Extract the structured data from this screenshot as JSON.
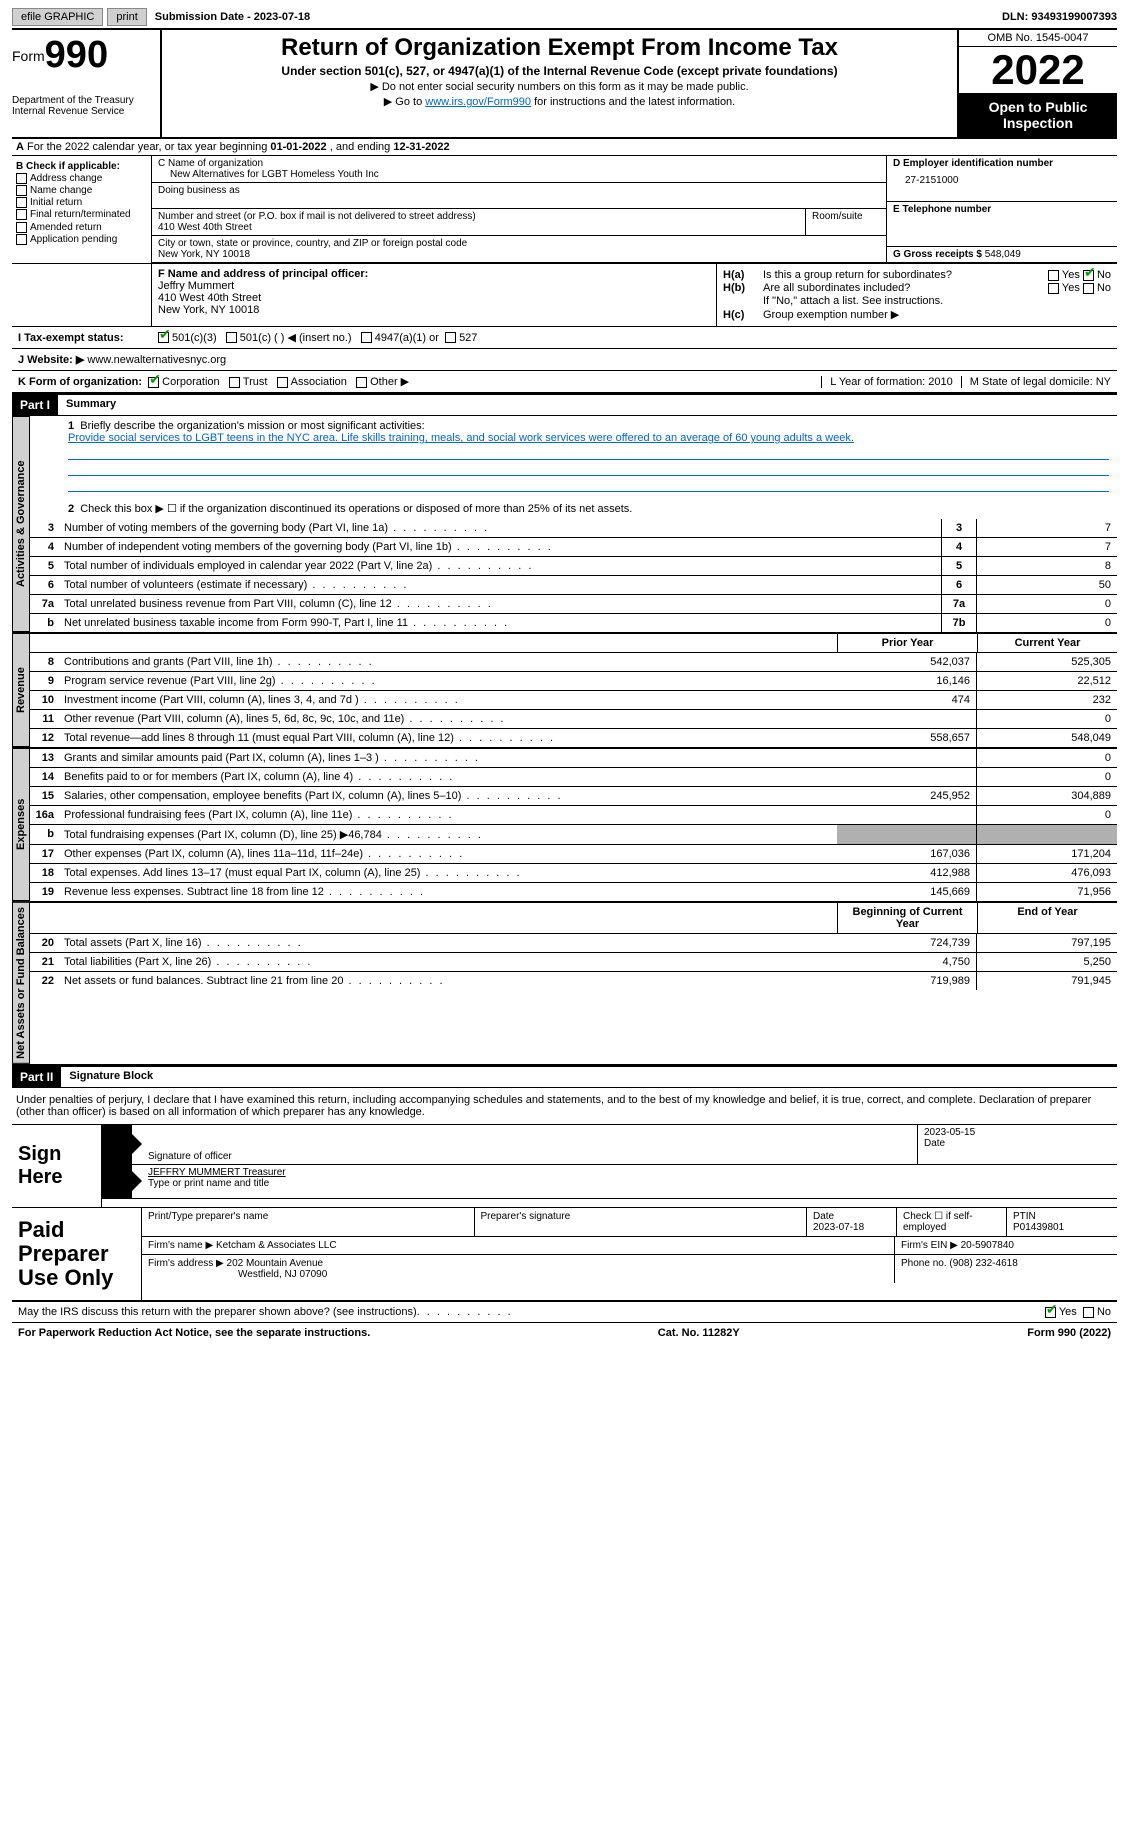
{
  "topbar": {
    "efile": "efile GRAPHIC",
    "print": "print",
    "subdate_label": "Submission Date - ",
    "subdate": "2023-07-18",
    "dln_label": "DLN: ",
    "dln": "93493199007393"
  },
  "header": {
    "form_label": "Form",
    "form_num": "990",
    "dept": "Department of the Treasury\nInternal Revenue Service",
    "title": "Return of Organization Exempt From Income Tax",
    "subtitle": "Under section 501(c), 527, or 4947(a)(1) of the Internal Revenue Code (except private foundations)",
    "note1": "▶ Do not enter social security numbers on this form as it may be made public.",
    "note2_pre": "▶ Go to ",
    "note2_link": "www.irs.gov/Form990",
    "note2_post": " for instructions and the latest information.",
    "omb": "OMB No. 1545-0047",
    "year": "2022",
    "opi": "Open to Public Inspection"
  },
  "A": {
    "text": "For the 2022 calendar year, or tax year beginning ",
    "begin": "01-01-2022",
    "mid": " , and ending ",
    "end": "12-31-2022"
  },
  "B": {
    "hdr": "B Check if applicable:",
    "items": [
      "Address change",
      "Name change",
      "Initial return",
      "Final return/terminated",
      "Amended return",
      "Application pending"
    ]
  },
  "C": {
    "name_label": "C Name of organization",
    "name": "New Alternatives for LGBT Homeless Youth Inc",
    "dba_label": "Doing business as",
    "street_label": "Number and street (or P.O. box if mail is not delivered to street address)",
    "street": "410 West 40th Street",
    "room_label": "Room/suite",
    "city_label": "City or town, state or province, country, and ZIP or foreign postal code",
    "city": "New York, NY  10018"
  },
  "D": {
    "ein_label": "D Employer identification number",
    "ein": "27-2151000",
    "tel_label": "E Telephone number",
    "gross_label": "G Gross receipts $ ",
    "gross": "548,049"
  },
  "F": {
    "label": "F  Name and address of principal officer:",
    "name": "Jeffry Mummert",
    "addr1": "410 West 40th Street",
    "addr2": "New York, NY  10018"
  },
  "H": {
    "a_label": "H(a)",
    "a_text": "Is this a group return for subordinates?",
    "a_no_checked": true,
    "b_label": "H(b)",
    "b_text": "Are all subordinates included?",
    "b_note": "If \"No,\" attach a list. See instructions.",
    "c_label": "H(c)",
    "c_text": "Group exemption number ▶"
  },
  "I": {
    "label": "I   Tax-exempt status:",
    "opts": [
      "501(c)(3)",
      "501(c) (  ) ◀ (insert no.)",
      "4947(a)(1) or",
      "527"
    ],
    "checked": 0
  },
  "J": {
    "label": "J   Website: ▶ ",
    "value": "www.newalternativesnyc.org"
  },
  "K": {
    "label": "K Form of organization:",
    "opts": [
      "Corporation",
      "Trust",
      "Association",
      "Other ▶"
    ],
    "checked": 0,
    "L": "L Year of formation: 2010",
    "M": "M State of legal domicile: NY"
  },
  "part1": {
    "hdr": "Part I",
    "title": "Summary",
    "tab_ag": "Activities & Governance",
    "tab_rev": "Revenue",
    "tab_exp": "Expenses",
    "tab_na": "Net Assets or Fund Balances",
    "l1_label": "Briefly describe the organization's mission or most significant activities:",
    "l1_text": "Provide social services to LGBT teens in the NYC area. Life skills training, meals, and social work services were offered to an average of 60 young adults a week.",
    "l2": "Check this box ▶ ☐  if the organization discontinued its operations or disposed of more than 25% of its net assets.",
    "lines_ag": [
      {
        "n": "3",
        "t": "Number of voting members of the governing body (Part VI, line 1a)",
        "box": "3",
        "v": "7"
      },
      {
        "n": "4",
        "t": "Number of independent voting members of the governing body (Part VI, line 1b)",
        "box": "4",
        "v": "7"
      },
      {
        "n": "5",
        "t": "Total number of individuals employed in calendar year 2022 (Part V, line 2a)",
        "box": "5",
        "v": "8"
      },
      {
        "n": "6",
        "t": "Total number of volunteers (estimate if necessary)",
        "box": "6",
        "v": "50"
      },
      {
        "n": "7a",
        "t": "Total unrelated business revenue from Part VIII, column (C), line 12",
        "box": "7a",
        "v": "0"
      },
      {
        "n": "b",
        "t": "Net unrelated business taxable income from Form 990-T, Part I, line 11",
        "box": "7b",
        "v": "0"
      }
    ],
    "prior_hdr": "Prior Year",
    "curr_hdr": "Current Year",
    "lines_rev": [
      {
        "n": "8",
        "t": "Contributions and grants (Part VIII, line 1h)",
        "p": "542,037",
        "c": "525,305"
      },
      {
        "n": "9",
        "t": "Program service revenue (Part VIII, line 2g)",
        "p": "16,146",
        "c": "22,512"
      },
      {
        "n": "10",
        "t": "Investment income (Part VIII, column (A), lines 3, 4, and 7d )",
        "p": "474",
        "c": "232"
      },
      {
        "n": "11",
        "t": "Other revenue (Part VIII, column (A), lines 5, 6d, 8c, 9c, 10c, and 11e)",
        "p": "",
        "c": "0"
      },
      {
        "n": "12",
        "t": "Total revenue—add lines 8 through 11 (must equal Part VIII, column (A), line 12)",
        "p": "558,657",
        "c": "548,049"
      }
    ],
    "lines_exp": [
      {
        "n": "13",
        "t": "Grants and similar amounts paid (Part IX, column (A), lines 1–3 )",
        "p": "",
        "c": "0"
      },
      {
        "n": "14",
        "t": "Benefits paid to or for members (Part IX, column (A), line 4)",
        "p": "",
        "c": "0"
      },
      {
        "n": "15",
        "t": "Salaries, other compensation, employee benefits (Part IX, column (A), lines 5–10)",
        "p": "245,952",
        "c": "304,889"
      },
      {
        "n": "16a",
        "t": "Professional fundraising fees (Part IX, column (A), line 11e)",
        "p": "",
        "c": "0"
      },
      {
        "n": "b",
        "t": "Total fundraising expenses (Part IX, column (D), line 25) ▶46,784",
        "p": "shade",
        "c": "shade"
      },
      {
        "n": "17",
        "t": "Other expenses (Part IX, column (A), lines 11a–11d, 11f–24e)",
        "p": "167,036",
        "c": "171,204"
      },
      {
        "n": "18",
        "t": "Total expenses. Add lines 13–17 (must equal Part IX, column (A), line 25)",
        "p": "412,988",
        "c": "476,093"
      },
      {
        "n": "19",
        "t": "Revenue less expenses. Subtract line 18 from line 12",
        "p": "145,669",
        "c": "71,956"
      }
    ],
    "boy_hdr": "Beginning of Current Year",
    "eoy_hdr": "End of Year",
    "lines_na": [
      {
        "n": "20",
        "t": "Total assets (Part X, line 16)",
        "p": "724,739",
        "c": "797,195"
      },
      {
        "n": "21",
        "t": "Total liabilities (Part X, line 26)",
        "p": "4,750",
        "c": "5,250"
      },
      {
        "n": "22",
        "t": "Net assets or fund balances. Subtract line 21 from line 20",
        "p": "719,989",
        "c": "791,945"
      }
    ]
  },
  "part2": {
    "hdr": "Part II",
    "title": "Signature Block",
    "decl": "Under penalties of perjury, I declare that I have examined this return, including accompanying schedules and statements, and to the best of my knowledge and belief, it is true, correct, and complete. Declaration of preparer (other than officer) is based on all information of which preparer has any knowledge.",
    "sign_here": "Sign Here",
    "sig_officer": "Signature of officer",
    "sig_date": "2023-05-15",
    "date_label": "Date",
    "name_title": "JEFFRY MUMMERT  Treasurer",
    "name_title_label": "Type or print name and title",
    "paid": "Paid Preparer Use Only",
    "pp_name_label": "Print/Type preparer's name",
    "pp_sig_label": "Preparer's signature",
    "pp_date_label": "Date",
    "pp_date": "2023-07-18",
    "pp_check_label": "Check ☐ if self-employed",
    "pp_ptin_label": "PTIN",
    "pp_ptin": "P01439801",
    "firm_name_label": "Firm's name    ▶ ",
    "firm_name": "Ketcham & Associates LLC",
    "firm_ein_label": "Firm's EIN ▶ ",
    "firm_ein": "20-5907840",
    "firm_addr_label": "Firm's address ▶ ",
    "firm_addr1": "202 Mountain Avenue",
    "firm_addr2": "Westfield, NJ  07090",
    "firm_phone_label": "Phone no. ",
    "firm_phone": "(908) 232-4618",
    "discuss": "May the IRS discuss this return with the preparer shown above? (see instructions)",
    "yes": "Yes",
    "no": "No"
  },
  "footer": {
    "pra": "For Paperwork Reduction Act Notice, see the separate instructions.",
    "cat": "Cat. No. 11282Y",
    "form": "Form 990 (2022)"
  }
}
